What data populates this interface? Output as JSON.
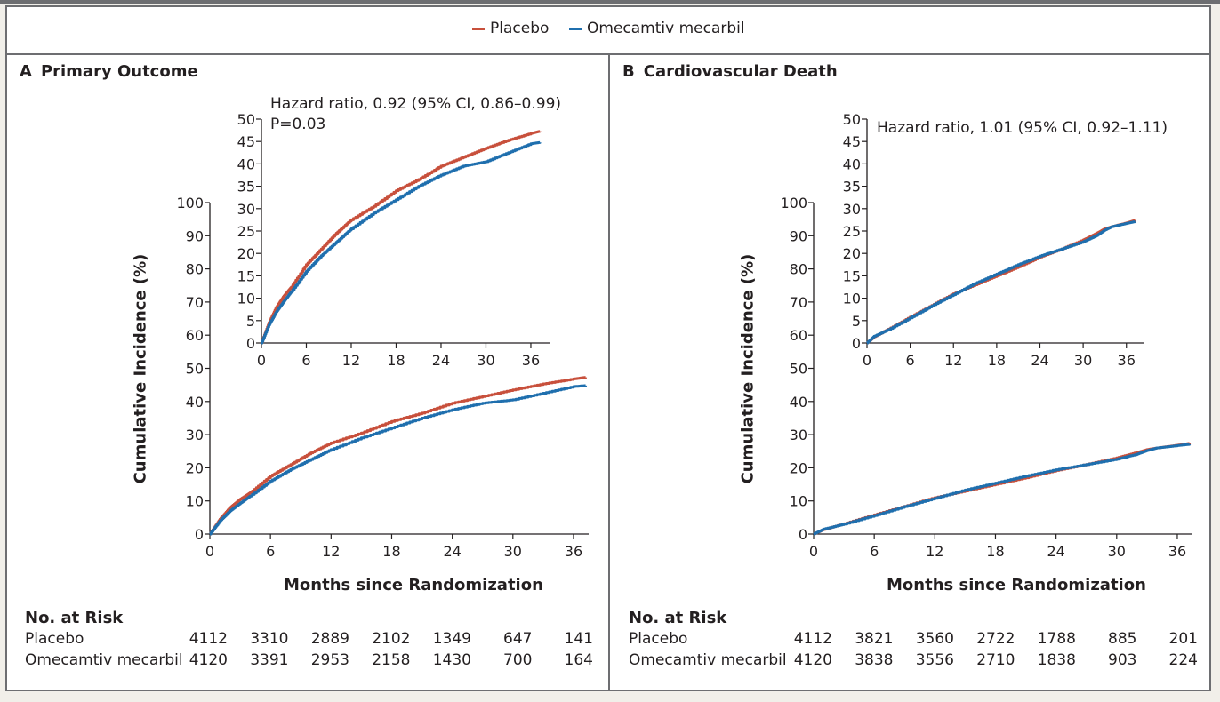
{
  "legend": {
    "placebo": "Placebo",
    "omecamtiv": "Omecamtiv mecarbil",
    "placebo_color": "#c8503c",
    "omecamtiv_color": "#1f6fae"
  },
  "panels": {
    "A": {
      "letter": "A",
      "title": "Primary Outcome",
      "hr": "Hazard ratio, 0.92 (95% CI, 0.86–0.99)",
      "p": "P=0.03",
      "ylabel": "Cumulative Incidence (%)",
      "xlabel": "Months since Randomization",
      "risk": {
        "header": "No. at Risk",
        "rows": [
          {
            "label": "Placebo",
            "values": [
              "4112",
              "3310",
              "2889",
              "2102",
              "1349",
              "647",
              "141"
            ]
          },
          {
            "label": "Omecamtiv mecarbil",
            "values": [
              "4120",
              "3391",
              "2953",
              "2158",
              "1430",
              "700",
              "164"
            ]
          }
        ]
      }
    },
    "B": {
      "letter": "B",
      "title": "Cardiovascular Death",
      "hr": "Hazard ratio, 1.01 (95% CI, 0.92–1.11)",
      "ylabel": "Cumulative Incidence (%)",
      "xlabel": "Months since Randomization",
      "risk": {
        "header": "No. at Risk",
        "rows": [
          {
            "label": "Placebo",
            "values": [
              "4112",
              "3821",
              "3560",
              "2722",
              "1788",
              "885",
              "201"
            ]
          },
          {
            "label": "Omecamtiv mecarbil",
            "values": [
              "4120",
              "3838",
              "3556",
              "2710",
              "1838",
              "903",
              "224"
            ]
          }
        ]
      }
    }
  },
  "chart_data": [
    {
      "type": "line",
      "panel": "A",
      "title": "Primary Outcome",
      "xlabel": "Months since Randomization",
      "ylabel": "Cumulative Incidence (%)",
      "xlim": [
        0,
        37
      ],
      "ylim": [
        0,
        100
      ],
      "xticks": [
        0,
        6,
        12,
        18,
        24,
        30,
        36
      ],
      "yticks": [
        0,
        10,
        20,
        30,
        40,
        50,
        60,
        70,
        80,
        90,
        100
      ],
      "inset": {
        "xlim": [
          0,
          37
        ],
        "ylim": [
          0,
          50
        ],
        "xticks": [
          0,
          6,
          12,
          18,
          24,
          30,
          36
        ],
        "yticks": [
          0,
          5,
          10,
          15,
          20,
          25,
          30,
          35,
          40,
          45,
          50
        ]
      },
      "series": [
        {
          "name": "Placebo",
          "color": "#c8503c",
          "x": [
            0,
            1,
            2,
            3,
            4,
            6,
            8,
            10,
            12,
            15,
            18,
            21,
            24,
            27,
            30,
            33,
            36,
            37.2
          ],
          "y": [
            0,
            4.5,
            8.0,
            10.5,
            12.5,
            17.5,
            21.0,
            24.5,
            27.5,
            30.5,
            34.0,
            36.5,
            39.5,
            41.5,
            43.5,
            45.3,
            46.8,
            47.3
          ]
        },
        {
          "name": "Omecamtiv mecarbil",
          "color": "#1f6fae",
          "x": [
            0,
            1,
            2,
            3,
            4,
            6,
            8,
            10,
            12,
            15,
            18,
            21,
            24,
            27,
            30,
            33,
            36,
            37.2
          ],
          "y": [
            0,
            4.0,
            7.0,
            9.3,
            11.5,
            16.0,
            19.5,
            22.5,
            25.5,
            29.0,
            32.0,
            35.0,
            37.5,
            39.5,
            40.5,
            42.5,
            44.5,
            44.8
          ]
        }
      ]
    },
    {
      "type": "line",
      "panel": "B",
      "title": "Cardiovascular Death",
      "xlabel": "Months since Randomization",
      "ylabel": "Cumulative Incidence (%)",
      "xlim": [
        0,
        37
      ],
      "ylim": [
        0,
        100
      ],
      "xticks": [
        0,
        6,
        12,
        18,
        24,
        30,
        36
      ],
      "yticks": [
        0,
        10,
        20,
        30,
        40,
        50,
        60,
        70,
        80,
        90,
        100
      ],
      "inset": {
        "xlim": [
          0,
          37
        ],
        "ylim": [
          0,
          50
        ],
        "xticks": [
          0,
          6,
          12,
          18,
          24,
          30,
          36
        ],
        "yticks": [
          0,
          5,
          10,
          15,
          20,
          25,
          30,
          35,
          40,
          45,
          50
        ]
      },
      "series": [
        {
          "name": "Placebo",
          "color": "#c8503c",
          "x": [
            0,
            1,
            3,
            6,
            9,
            12,
            15,
            18,
            21,
            24,
            27,
            30,
            32,
            33,
            34,
            36,
            37.2
          ],
          "y": [
            0,
            1.4,
            3.1,
            5.8,
            8.4,
            11.0,
            13.0,
            15.0,
            17.0,
            19.2,
            21.0,
            23.0,
            24.6,
            25.5,
            26.0,
            26.8,
            27.4
          ]
        },
        {
          "name": "Omecamtiv mecarbil",
          "color": "#1f6fae",
          "x": [
            0,
            1,
            3,
            6,
            9,
            12,
            15,
            18,
            21,
            24,
            27,
            30,
            32,
            33,
            34,
            36,
            37.2
          ],
          "y": [
            0,
            1.5,
            3.0,
            5.6,
            8.3,
            10.8,
            13.3,
            15.4,
            17.5,
            19.4,
            21.0,
            22.6,
            24.1,
            25.2,
            26.0,
            26.7,
            27.1
          ]
        }
      ]
    }
  ]
}
